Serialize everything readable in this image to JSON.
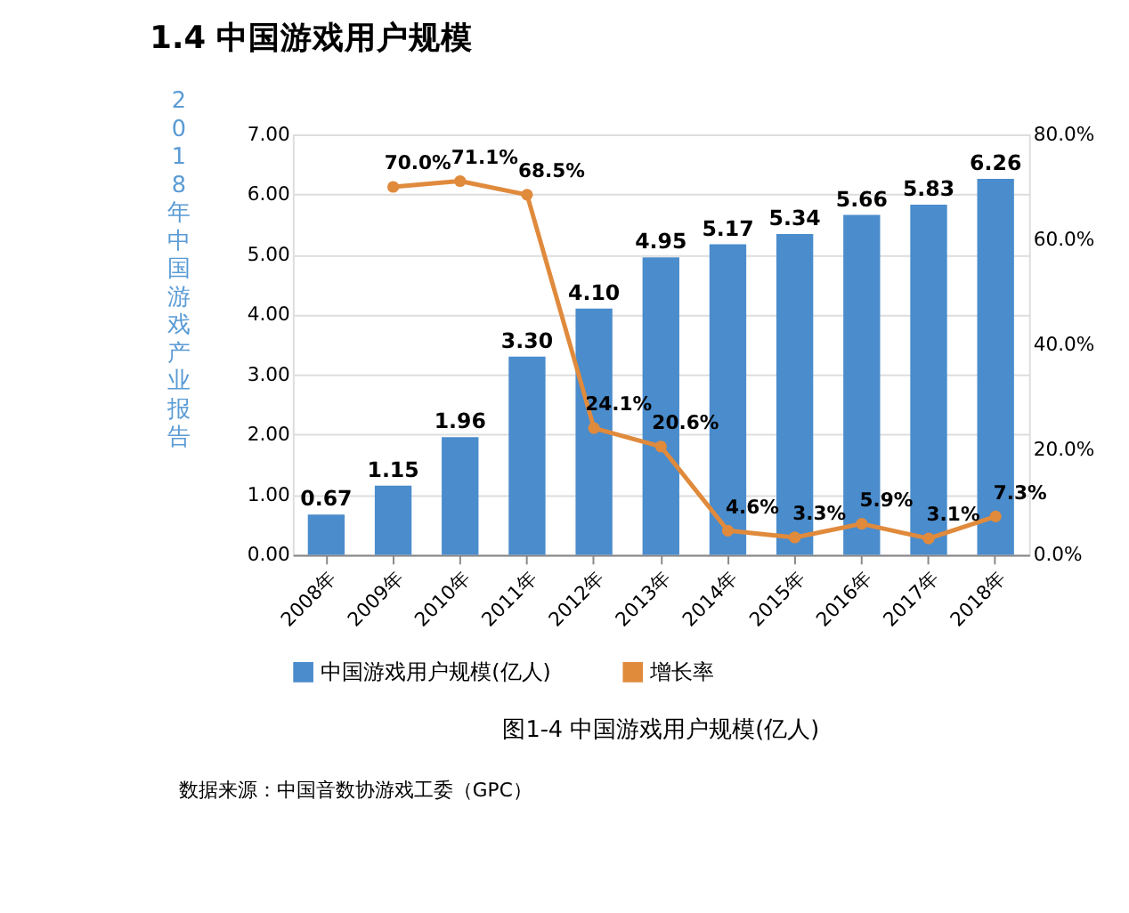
{
  "chart_data": {
    "type": "bar",
    "title": "1.4  中国游戏用户规模",
    "categories": [
      "2008年",
      "2009年",
      "2010年",
      "2011年",
      "2012年",
      "2013年",
      "2014年",
      "2015年",
      "2016年",
      "2017年",
      "2018年"
    ],
    "series": [
      {
        "name": "中国游戏用户规模(亿人)",
        "color": "#4a8ccc",
        "values": [
          0.67,
          1.15,
          1.96,
          3.3,
          4.1,
          4.95,
          5.17,
          5.34,
          5.66,
          5.83,
          6.26
        ],
        "value_labels": [
          "0.67",
          "1.15",
          "1.96",
          "3.30",
          "4.10",
          "4.95",
          "5.17",
          "5.34",
          "5.66",
          "5.83",
          "6.26"
        ]
      },
      {
        "name": "增长率",
        "type": "line",
        "axis": "y2",
        "color": "#e08a3c",
        "values": [
          null,
          70.0,
          71.1,
          68.5,
          24.1,
          20.6,
          4.6,
          3.3,
          5.9,
          3.1,
          7.3
        ],
        "value_labels": [
          null,
          "70.0%",
          "71.1%",
          "68.5%",
          "24.1%",
          "20.6%",
          "4.6%",
          "3.3%",
          "5.9%",
          "3.1%",
          "7.3%"
        ]
      }
    ],
    "ylim": [
      0,
      7
    ],
    "yticks": [
      {
        "value": 0,
        "label": "0.00"
      },
      {
        "value": 1,
        "label": "1.00"
      },
      {
        "value": 2,
        "label": "2.00"
      },
      {
        "value": 3,
        "label": "3.00"
      },
      {
        "value": 4,
        "label": "4.00"
      },
      {
        "value": 5,
        "label": "5.00"
      },
      {
        "value": 6,
        "label": "6.00"
      },
      {
        "value": 7,
        "label": "7.00"
      }
    ],
    "y2lim": [
      0,
      80
    ],
    "y2ticks": [
      {
        "value": 0,
        "label": "0.0%"
      },
      {
        "value": 20,
        "label": "20.0%"
      },
      {
        "value": 40,
        "label": "40.0%"
      },
      {
        "value": 60,
        "label": "60.0%"
      },
      {
        "value": 80,
        "label": "80.0%"
      }
    ],
    "grid": "y",
    "legend": "bottom",
    "marker": "circle",
    "annotations": [
      "2018年中国游戏产业报告",
      "图1-4  中国游戏用户规模(亿人)",
      "数据来源：中国音数协游戏工委（GPC）"
    ]
  }
}
